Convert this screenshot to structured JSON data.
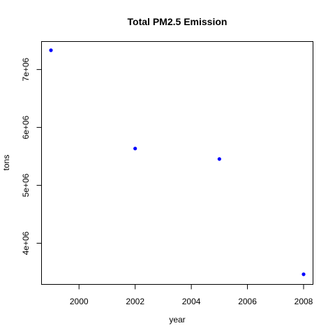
{
  "chart_data": {
    "type": "scatter",
    "title": "Total PM2.5 Emission",
    "xlabel": "year",
    "ylabel": "tons",
    "x": [
      1999,
      2002,
      2005,
      2008
    ],
    "y": [
      7332967,
      5635780,
      5454703,
      3464206
    ],
    "xlim": [
      1999,
      2008
    ],
    "ylim": [
      3464206,
      7332967
    ],
    "xticks": [
      2000,
      2002,
      2004,
      2006,
      2008
    ],
    "xtick_labels": [
      "2000",
      "2002",
      "2004",
      "2006",
      "2008"
    ],
    "yticks": [
      4000000,
      5000000,
      6000000,
      7000000
    ],
    "ytick_labels": [
      "4e+06",
      "5e+06",
      "6e+06",
      "7e+06"
    ],
    "point_color": "#0000ff",
    "grid": false,
    "legend": false
  }
}
